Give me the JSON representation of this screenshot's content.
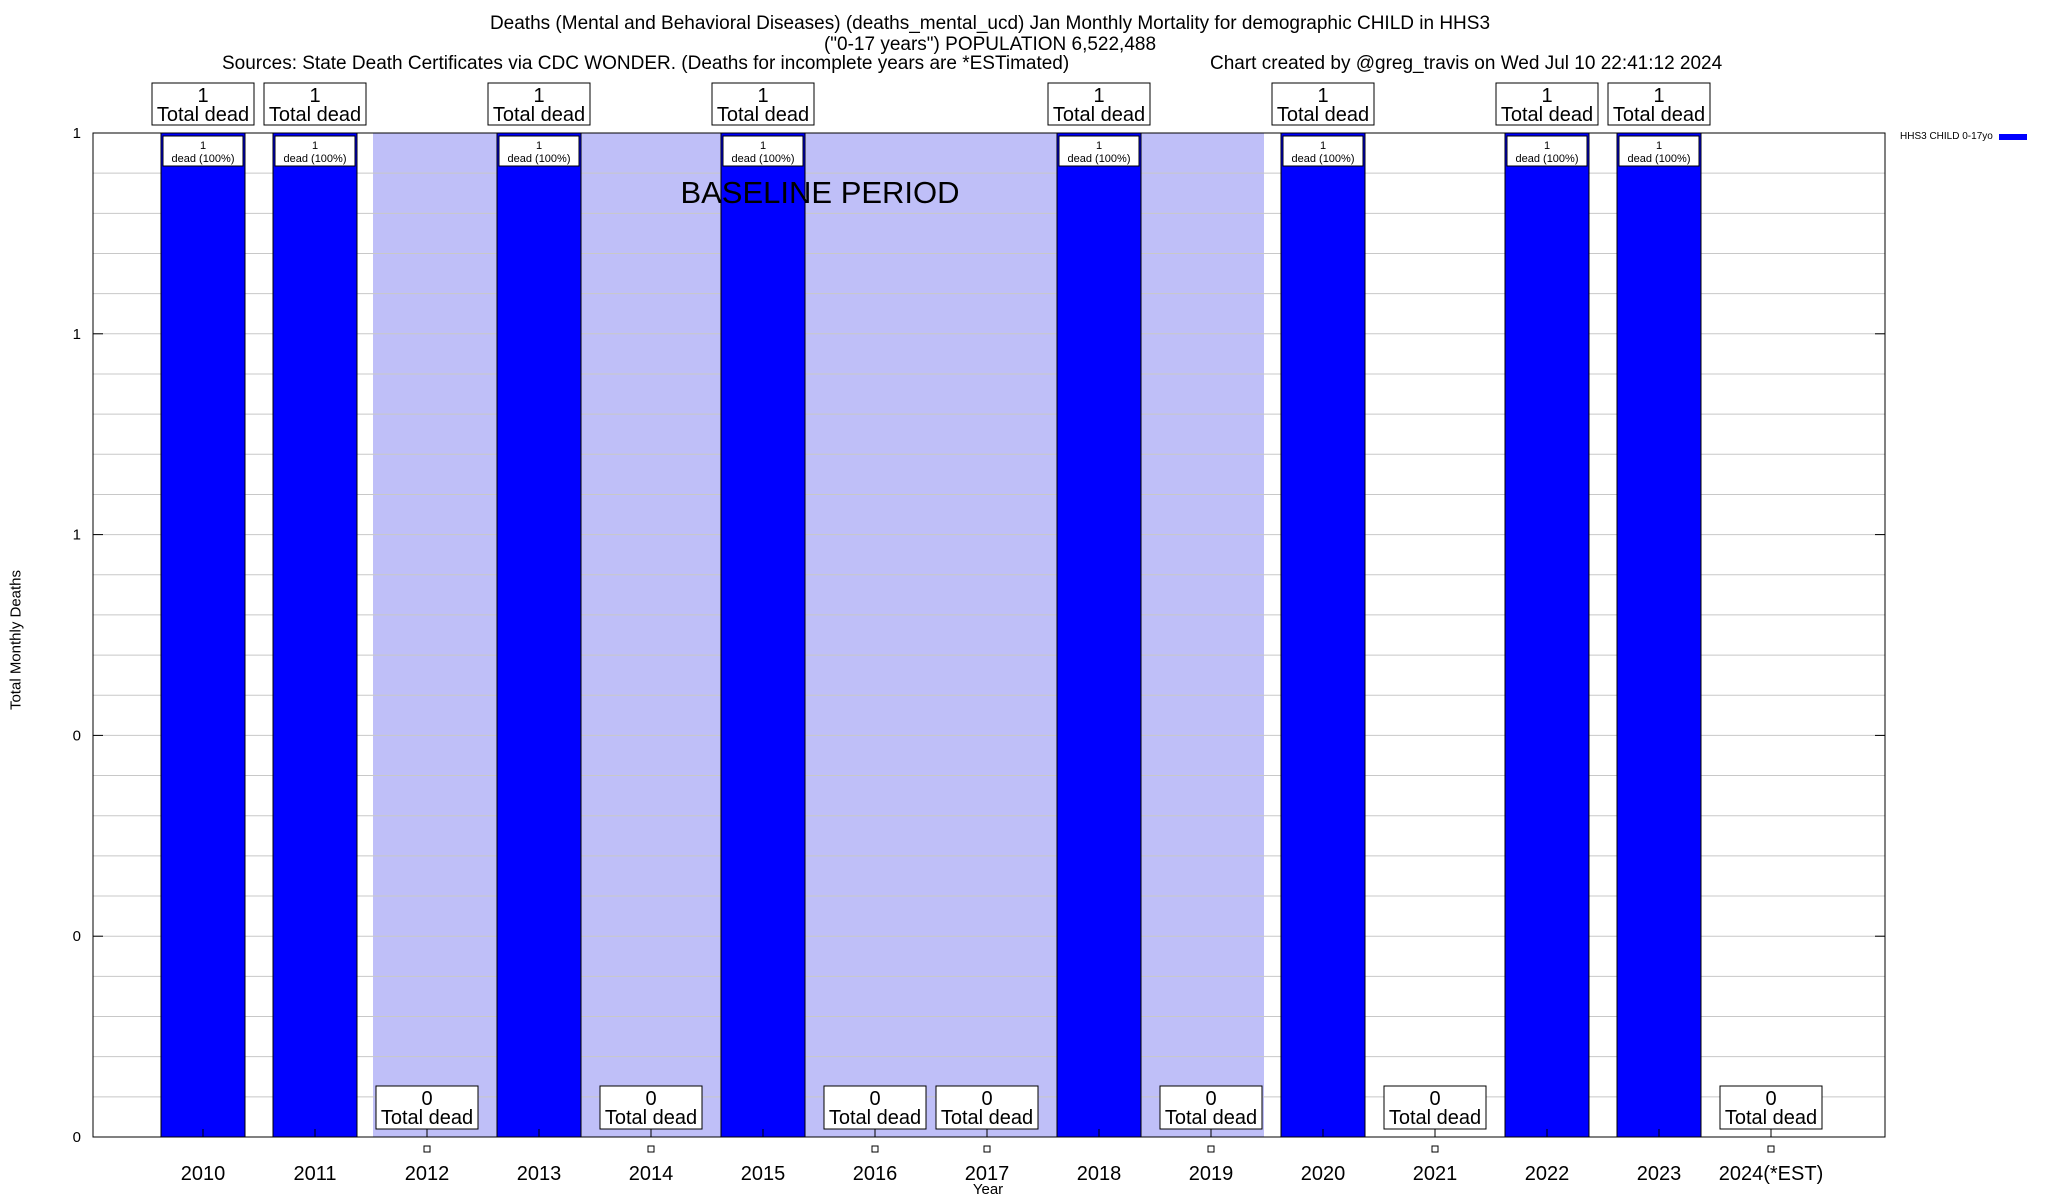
{
  "header": {
    "title_line1": "Deaths (Mental and Behavioral Diseases) (deaths_mental_ucd) Jan Monthly Mortality for demographic CHILD in HHS3",
    "title_line2": "(\"0-17 years\") POPULATION 6,522,488",
    "sources": "Sources: State Death Certificates via CDC WONDER. (Deaths for incomplete years are *ESTimated)",
    "credit": "Chart created by @greg_travis on Wed Jul 10 22:41:12 2024"
  },
  "colors": {
    "bar": "#0000ff",
    "baseline": "#bfbff8",
    "grid": "#c8c8c8"
  },
  "chart_data": {
    "type": "bar",
    "xlabel": "Year",
    "ylabel": "Total Monthly Deaths",
    "ylim": [
      0,
      1
    ],
    "y_tick_labels": [
      "0",
      "0",
      "0",
      "1",
      "1",
      "1"
    ],
    "grid": true,
    "legend_position": "top-right",
    "baseline_label": "BASELINE PERIOD",
    "baseline_range": [
      "2012",
      "2019"
    ],
    "categories": [
      "2010",
      "2011",
      "2012",
      "2013",
      "2014",
      "2015",
      "2016",
      "2017",
      "2018",
      "2019",
      "2020",
      "2021",
      "2022",
      "2023",
      "2024(*EST)"
    ],
    "series": [
      {
        "name": "HHS3 CHILD 0-17yo",
        "values": [
          1,
          1,
          0,
          1,
          0,
          1,
          0,
          0,
          1,
          0,
          1,
          0,
          1,
          1,
          0
        ]
      }
    ],
    "total_labels": [
      "Total dead",
      "Total dead",
      "Total dead",
      "Total dead",
      "Total dead",
      "Total dead",
      "Total dead",
      "Total dead",
      "Total dead",
      "Total dead",
      "Total dead",
      "Total dead",
      "Total dead",
      "Total dead",
      "Total dead"
    ],
    "inner_labels": [
      "dead (100%)",
      "dead (100%)",
      "",
      "dead (100%)",
      "",
      "dead (100%)",
      "",
      "",
      "dead (100%)",
      "",
      "dead (100%)",
      "",
      "dead (100%)",
      "dead (100%)",
      ""
    ]
  }
}
